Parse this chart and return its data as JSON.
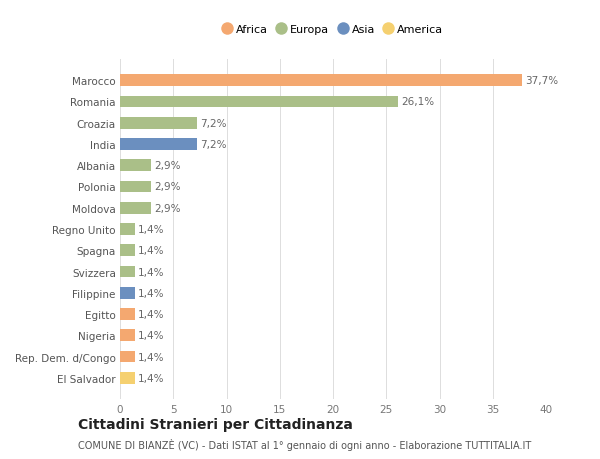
{
  "countries": [
    "Marocco",
    "Romania",
    "Croazia",
    "India",
    "Albania",
    "Polonia",
    "Moldova",
    "Regno Unito",
    "Spagna",
    "Svizzera",
    "Filippine",
    "Egitto",
    "Nigeria",
    "Rep. Dem. d/Congo",
    "El Salvador"
  ],
  "values": [
    37.7,
    26.1,
    7.2,
    7.2,
    2.9,
    2.9,
    2.9,
    1.4,
    1.4,
    1.4,
    1.4,
    1.4,
    1.4,
    1.4,
    1.4
  ],
  "labels": [
    "37,7%",
    "26,1%",
    "7,2%",
    "7,2%",
    "2,9%",
    "2,9%",
    "2,9%",
    "1,4%",
    "1,4%",
    "1,4%",
    "1,4%",
    "1,4%",
    "1,4%",
    "1,4%",
    "1,4%"
  ],
  "continents": [
    "Africa",
    "Europa",
    "Europa",
    "Asia",
    "Europa",
    "Europa",
    "Europa",
    "Europa",
    "Europa",
    "Europa",
    "Asia",
    "Africa",
    "Africa",
    "Africa",
    "America"
  ],
  "continent_colors": {
    "Africa": "#F4A870",
    "Europa": "#AABF88",
    "Asia": "#6B8FBF",
    "America": "#F5D070"
  },
  "legend_order": [
    "Africa",
    "Europa",
    "Asia",
    "America"
  ],
  "xlim": [
    0,
    40
  ],
  "xticks": [
    0,
    5,
    10,
    15,
    20,
    25,
    30,
    35,
    40
  ],
  "title": "Cittadini Stranieri per Cittadinanza",
  "subtitle": "COMUNE DI BIANZÈ (VC) - Dati ISTAT al 1° gennaio di ogni anno - Elaborazione TUTTITALIA.IT",
  "bg_color": "#FFFFFF",
  "grid_color": "#DDDDDD",
  "bar_height": 0.55,
  "label_fontsize": 7.5,
  "ytick_fontsize": 7.5,
  "xtick_fontsize": 7.5,
  "title_fontsize": 10,
  "subtitle_fontsize": 7,
  "legend_fontsize": 8
}
